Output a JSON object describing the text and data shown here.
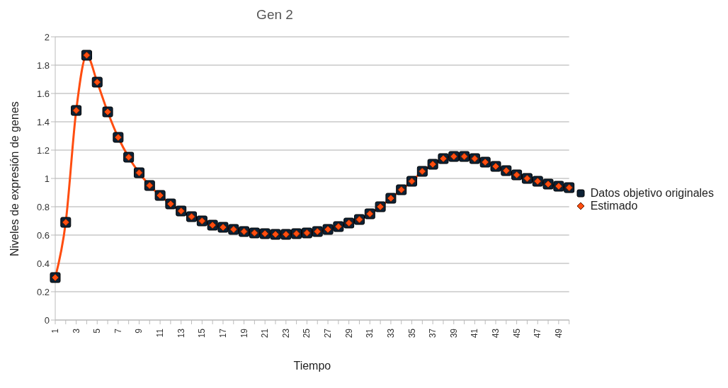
{
  "chart_data": {
    "type": "line",
    "title": "Gen 2",
    "xlabel": "Tiempo",
    "ylabel": "Niveles de expresión de genes",
    "categories": [
      "1",
      null,
      "3",
      null,
      "5",
      null,
      "7",
      null,
      "9",
      null,
      "11",
      null,
      "13",
      null,
      "15",
      null,
      "17",
      null,
      "19",
      null,
      "21",
      null,
      "23",
      null,
      "25",
      null,
      "27",
      null,
      "29",
      null,
      "31",
      null,
      "33",
      null,
      "35",
      null,
      "37",
      null,
      "39",
      null,
      "41",
      null,
      "43",
      null,
      "45",
      null,
      "47",
      null,
      "49",
      null
    ],
    "series": [
      {
        "name": "Datos objetivo originales",
        "type": "scatter",
        "marker": "square",
        "color": "#0d2236",
        "values": [
          0.3,
          0.69,
          1.48,
          1.87,
          1.68,
          1.47,
          1.29,
          1.15,
          1.04,
          0.95,
          0.88,
          0.82,
          0.77,
          0.73,
          0.7,
          0.67,
          0.655,
          0.64,
          0.625,
          0.615,
          0.61,
          0.605,
          0.605,
          0.61,
          0.615,
          0.625,
          0.64,
          0.66,
          0.685,
          0.71,
          0.75,
          0.8,
          0.86,
          0.92,
          0.98,
          1.05,
          1.1,
          1.14,
          1.155,
          1.155,
          1.14,
          1.115,
          1.085,
          1.055,
          1.025,
          1.0,
          0.98,
          0.96,
          0.945,
          0.935
        ]
      },
      {
        "name": "Estimado",
        "type": "line",
        "marker": "diamond",
        "color": "#ff4d10",
        "values": [
          0.3,
          0.69,
          1.48,
          1.87,
          1.68,
          1.47,
          1.29,
          1.15,
          1.04,
          0.95,
          0.88,
          0.82,
          0.77,
          0.73,
          0.7,
          0.67,
          0.655,
          0.64,
          0.625,
          0.615,
          0.61,
          0.605,
          0.605,
          0.61,
          0.615,
          0.625,
          0.64,
          0.66,
          0.685,
          0.71,
          0.75,
          0.8,
          0.86,
          0.92,
          0.98,
          1.05,
          1.1,
          1.14,
          1.155,
          1.155,
          1.14,
          1.115,
          1.085,
          1.055,
          1.025,
          1.0,
          0.98,
          0.96,
          0.945,
          0.935
        ]
      }
    ],
    "ylim": [
      0,
      2
    ],
    "yticks": [
      0,
      0.2,
      0.4,
      0.6,
      0.8,
      1,
      1.2,
      1.4,
      1.6,
      1.8,
      2
    ],
    "grid": "y",
    "legend": "right"
  }
}
